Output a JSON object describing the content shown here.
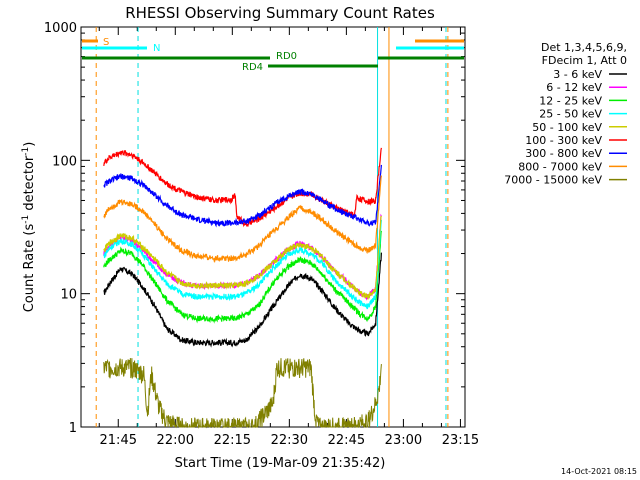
{
  "chart_data": {
    "type": "line",
    "title": "RHESSI Observing Summary Count Rates",
    "xlabel": "Start Time (19-Mar-09 21:35:42)",
    "ylabel_main": "Count Rate (s",
    "ylabel_sup1": "-1",
    "ylabel_mid": " detector",
    "ylabel_sup2": "-1",
    "ylabel_end": ")",
    "y_scale": "log",
    "ylim": [
      1,
      1000
    ],
    "x_range_minutes": [
      -0.5,
      100.5
    ],
    "x_ticks": [
      {
        "minute": 9.3,
        "label": "21:45"
      },
      {
        "minute": 24.3,
        "label": "22:00"
      },
      {
        "minute": 39.3,
        "label": "22:15"
      },
      {
        "minute": 54.3,
        "label": "22:30"
      },
      {
        "minute": 69.3,
        "label": "22:45"
      },
      {
        "minute": 84.3,
        "label": "23:00"
      },
      {
        "minute": 99.3,
        "label": "23:15"
      }
    ],
    "y_ticks": [
      {
        "value": 1,
        "label": "1"
      },
      {
        "value": 10,
        "label": "10"
      },
      {
        "value": 100,
        "label": "100"
      },
      {
        "value": 1000,
        "label": "1000"
      }
    ],
    "legend_header": [
      "Det 1,3,4,5,6,9,",
      "FDecim 1, Att 0"
    ],
    "legend_placement": "right",
    "series": [
      {
        "name": "3 - 6 keV",
        "color": "#000000",
        "points": [
          [
            5.5,
            10
          ],
          [
            7,
            12
          ],
          [
            10,
            15.5
          ],
          [
            13,
            14
          ],
          [
            16,
            11
          ],
          [
            19,
            8
          ],
          [
            22,
            5.5
          ],
          [
            26,
            4.5
          ],
          [
            30,
            4.3
          ],
          [
            35,
            4.3
          ],
          [
            40,
            4.3
          ],
          [
            43,
            4.5
          ],
          [
            46,
            5.5
          ],
          [
            50,
            8
          ],
          [
            54,
            11.5
          ],
          [
            57,
            14
          ],
          [
            60,
            13
          ],
          [
            63,
            10.5
          ],
          [
            66,
            8
          ],
          [
            70,
            6
          ],
          [
            73,
            5.2
          ],
          [
            75,
            5
          ],
          [
            77,
            6
          ],
          [
            78.5,
            20
          ]
        ]
      },
      {
        "name": "6 - 12 keV",
        "color": "#ff00ff",
        "points": [
          [
            5.5,
            20
          ],
          [
            7,
            23
          ],
          [
            10,
            27
          ],
          [
            13,
            25
          ],
          [
            16,
            21
          ],
          [
            19,
            17
          ],
          [
            22,
            14
          ],
          [
            26,
            12
          ],
          [
            30,
            11.5
          ],
          [
            35,
            11.5
          ],
          [
            40,
            11.5
          ],
          [
            43,
            12
          ],
          [
            46,
            13.5
          ],
          [
            50,
            17
          ],
          [
            54,
            21.5
          ],
          [
            57,
            24
          ],
          [
            60,
            22
          ],
          [
            63,
            19
          ],
          [
            66,
            15
          ],
          [
            70,
            12
          ],
          [
            73,
            10
          ],
          [
            75,
            9.5
          ],
          [
            77,
            11
          ],
          [
            78.5,
            40
          ]
        ]
      },
      {
        "name": "12 - 25 keV",
        "color": "#00ee00",
        "points": [
          [
            5.5,
            16
          ],
          [
            7,
            18
          ],
          [
            10,
            21
          ],
          [
            13,
            20
          ],
          [
            16,
            16
          ],
          [
            19,
            12
          ],
          [
            22,
            9
          ],
          [
            26,
            7
          ],
          [
            30,
            6.5
          ],
          [
            35,
            6.5
          ],
          [
            40,
            6.5
          ],
          [
            43,
            7
          ],
          [
            46,
            8
          ],
          [
            50,
            12
          ],
          [
            54,
            16
          ],
          [
            57,
            18
          ],
          [
            60,
            17
          ],
          [
            63,
            14
          ],
          [
            66,
            11
          ],
          [
            70,
            8.5
          ],
          [
            73,
            7
          ],
          [
            75,
            6.5
          ],
          [
            77,
            8
          ],
          [
            78.5,
            30
          ]
        ]
      },
      {
        "name": "25 - 50 keV",
        "color": "#00ffff",
        "points": [
          [
            5.5,
            19
          ],
          [
            7,
            22
          ],
          [
            10,
            25
          ],
          [
            13,
            23.5
          ],
          [
            16,
            19.5
          ],
          [
            19,
            15
          ],
          [
            22,
            12
          ],
          [
            26,
            10
          ],
          [
            30,
            9.5
          ],
          [
            35,
            9.5
          ],
          [
            40,
            9.5
          ],
          [
            43,
            10
          ],
          [
            46,
            11.5
          ],
          [
            50,
            15.5
          ],
          [
            54,
            19.5
          ],
          [
            57,
            21.5
          ],
          [
            60,
            20
          ],
          [
            63,
            17
          ],
          [
            66,
            13
          ],
          [
            70,
            10
          ],
          [
            73,
            8.5
          ],
          [
            75,
            8
          ],
          [
            77,
            9.5
          ],
          [
            78.5,
            35
          ]
        ]
      },
      {
        "name": "50 - 100 keV",
        "color": "#cccc00",
        "points": [
          [
            5.5,
            21
          ],
          [
            7,
            24
          ],
          [
            10,
            27.5
          ],
          [
            13,
            26
          ],
          [
            16,
            22
          ],
          [
            19,
            18
          ],
          [
            22,
            14.5
          ],
          [
            26,
            12
          ],
          [
            30,
            11.5
          ],
          [
            35,
            11.5
          ],
          [
            40,
            11.5
          ],
          [
            43,
            12
          ],
          [
            46,
            13.5
          ],
          [
            50,
            17
          ],
          [
            54,
            21.5
          ],
          [
            57,
            23.5
          ],
          [
            60,
            22
          ],
          [
            63,
            19
          ],
          [
            66,
            15
          ],
          [
            70,
            12
          ],
          [
            73,
            10
          ],
          [
            75,
            9.5
          ],
          [
            77,
            11
          ],
          [
            78.5,
            40
          ]
        ]
      },
      {
        "name": "100 - 300 keV",
        "color": "#ff0000",
        "points": [
          [
            5.5,
            95
          ],
          [
            7,
            105
          ],
          [
            10,
            115
          ],
          [
            13,
            110
          ],
          [
            16,
            95
          ],
          [
            19,
            80
          ],
          [
            22,
            67
          ],
          [
            26,
            58
          ],
          [
            30,
            53
          ],
          [
            35,
            50
          ],
          [
            39,
            51
          ],
          [
            40,
            55
          ],
          [
            40.5,
            38
          ],
          [
            43,
            33
          ],
          [
            46,
            36
          ],
          [
            50,
            43
          ],
          [
            54,
            52
          ],
          [
            57,
            57
          ],
          [
            60,
            56
          ],
          [
            63,
            50
          ],
          [
            66,
            45
          ],
          [
            70,
            40
          ],
          [
            71.5,
            39
          ],
          [
            72,
            53
          ],
          [
            75,
            49
          ],
          [
            77,
            50
          ],
          [
            78.5,
            125
          ]
        ]
      },
      {
        "name": "300 - 800 keV",
        "color": "#0000ff",
        "points": [
          [
            5.5,
            65
          ],
          [
            7,
            70
          ],
          [
            10,
            76
          ],
          [
            13,
            73
          ],
          [
            16,
            65
          ],
          [
            19,
            55
          ],
          [
            22,
            46
          ],
          [
            26,
            39
          ],
          [
            30,
            36
          ],
          [
            35,
            34
          ],
          [
            40,
            34
          ],
          [
            43,
            35
          ],
          [
            46,
            38
          ],
          [
            50,
            46
          ],
          [
            54,
            54
          ],
          [
            57,
            58
          ],
          [
            60,
            56
          ],
          [
            63,
            50
          ],
          [
            66,
            44
          ],
          [
            70,
            39
          ],
          [
            71.5,
            38
          ],
          [
            72,
            37
          ],
          [
            75,
            34
          ],
          [
            77,
            34
          ],
          [
            78.5,
            90
          ]
        ]
      },
      {
        "name": "800 - 7000 keV",
        "color": "#ff8c00",
        "points": [
          [
            5.5,
            38
          ],
          [
            7,
            44
          ],
          [
            10,
            49
          ],
          [
            13,
            47
          ],
          [
            16,
            41
          ],
          [
            19,
            33
          ],
          [
            22,
            26
          ],
          [
            26,
            21
          ],
          [
            30,
            19
          ],
          [
            35,
            18.5
          ],
          [
            40,
            18.5
          ],
          [
            43,
            19.5
          ],
          [
            46,
            22.5
          ],
          [
            50,
            29
          ],
          [
            54,
            37
          ],
          [
            57,
            44
          ],
          [
            60,
            41
          ],
          [
            63,
            36
          ],
          [
            66,
            30
          ],
          [
            70,
            25
          ],
          [
            73,
            22
          ],
          [
            75,
            21
          ],
          [
            77,
            23
          ],
          [
            78.5,
            80
          ]
        ]
      },
      {
        "name": "7000 - 15000 keV",
        "color": "#808000",
        "points": [
          [
            5.5,
            2.8
          ],
          [
            7,
            2.8
          ],
          [
            10,
            2.8
          ],
          [
            13,
            2.8
          ],
          [
            16,
            2.5
          ],
          [
            17,
            1.3
          ],
          [
            18,
            2.5
          ],
          [
            20,
            1.4
          ],
          [
            22,
            1.1
          ],
          [
            26,
            1
          ],
          [
            30,
            1
          ],
          [
            40,
            1
          ],
          [
            45,
            1
          ],
          [
            50,
            1.5
          ],
          [
            51,
            2.8
          ],
          [
            54,
            2.8
          ],
          [
            57,
            2.8
          ],
          [
            60,
            2.8
          ],
          [
            61,
            1.3
          ],
          [
            62,
            1
          ],
          [
            70,
            1
          ],
          [
            75,
            1.1
          ],
          [
            77,
            1.5
          ],
          [
            78,
            2
          ],
          [
            78.5,
            3
          ]
        ]
      }
    ],
    "annotations": {
      "S_label": "S",
      "N_label": "N",
      "RD0_label": "RD0",
      "RD4_label": "RD4"
    },
    "vertical_markers_minutes": [
      {
        "name": "S-start",
        "minute": 3.5,
        "color": "#ff8c00",
        "style": "dashed"
      },
      {
        "name": "N-end",
        "minute": 14.5,
        "color": "#00e0e0",
        "style": "dashed"
      },
      {
        "name": "N-start",
        "minute": 77.5,
        "color": "#00e0e0",
        "style": "solid"
      },
      {
        "name": "S-end",
        "minute": 80.5,
        "color": "#ff8c00",
        "style": "solid"
      },
      {
        "name": "N2-end",
        "minute": 95.5,
        "color": "#00e0e0",
        "style": "dashed"
      },
      {
        "name": "S2-end",
        "minute": 96,
        "color": "#ff8c00",
        "style": "dashed"
      }
    ],
    "grid": false
  },
  "footer_timestamp": "14-Oct-2021 08:15"
}
